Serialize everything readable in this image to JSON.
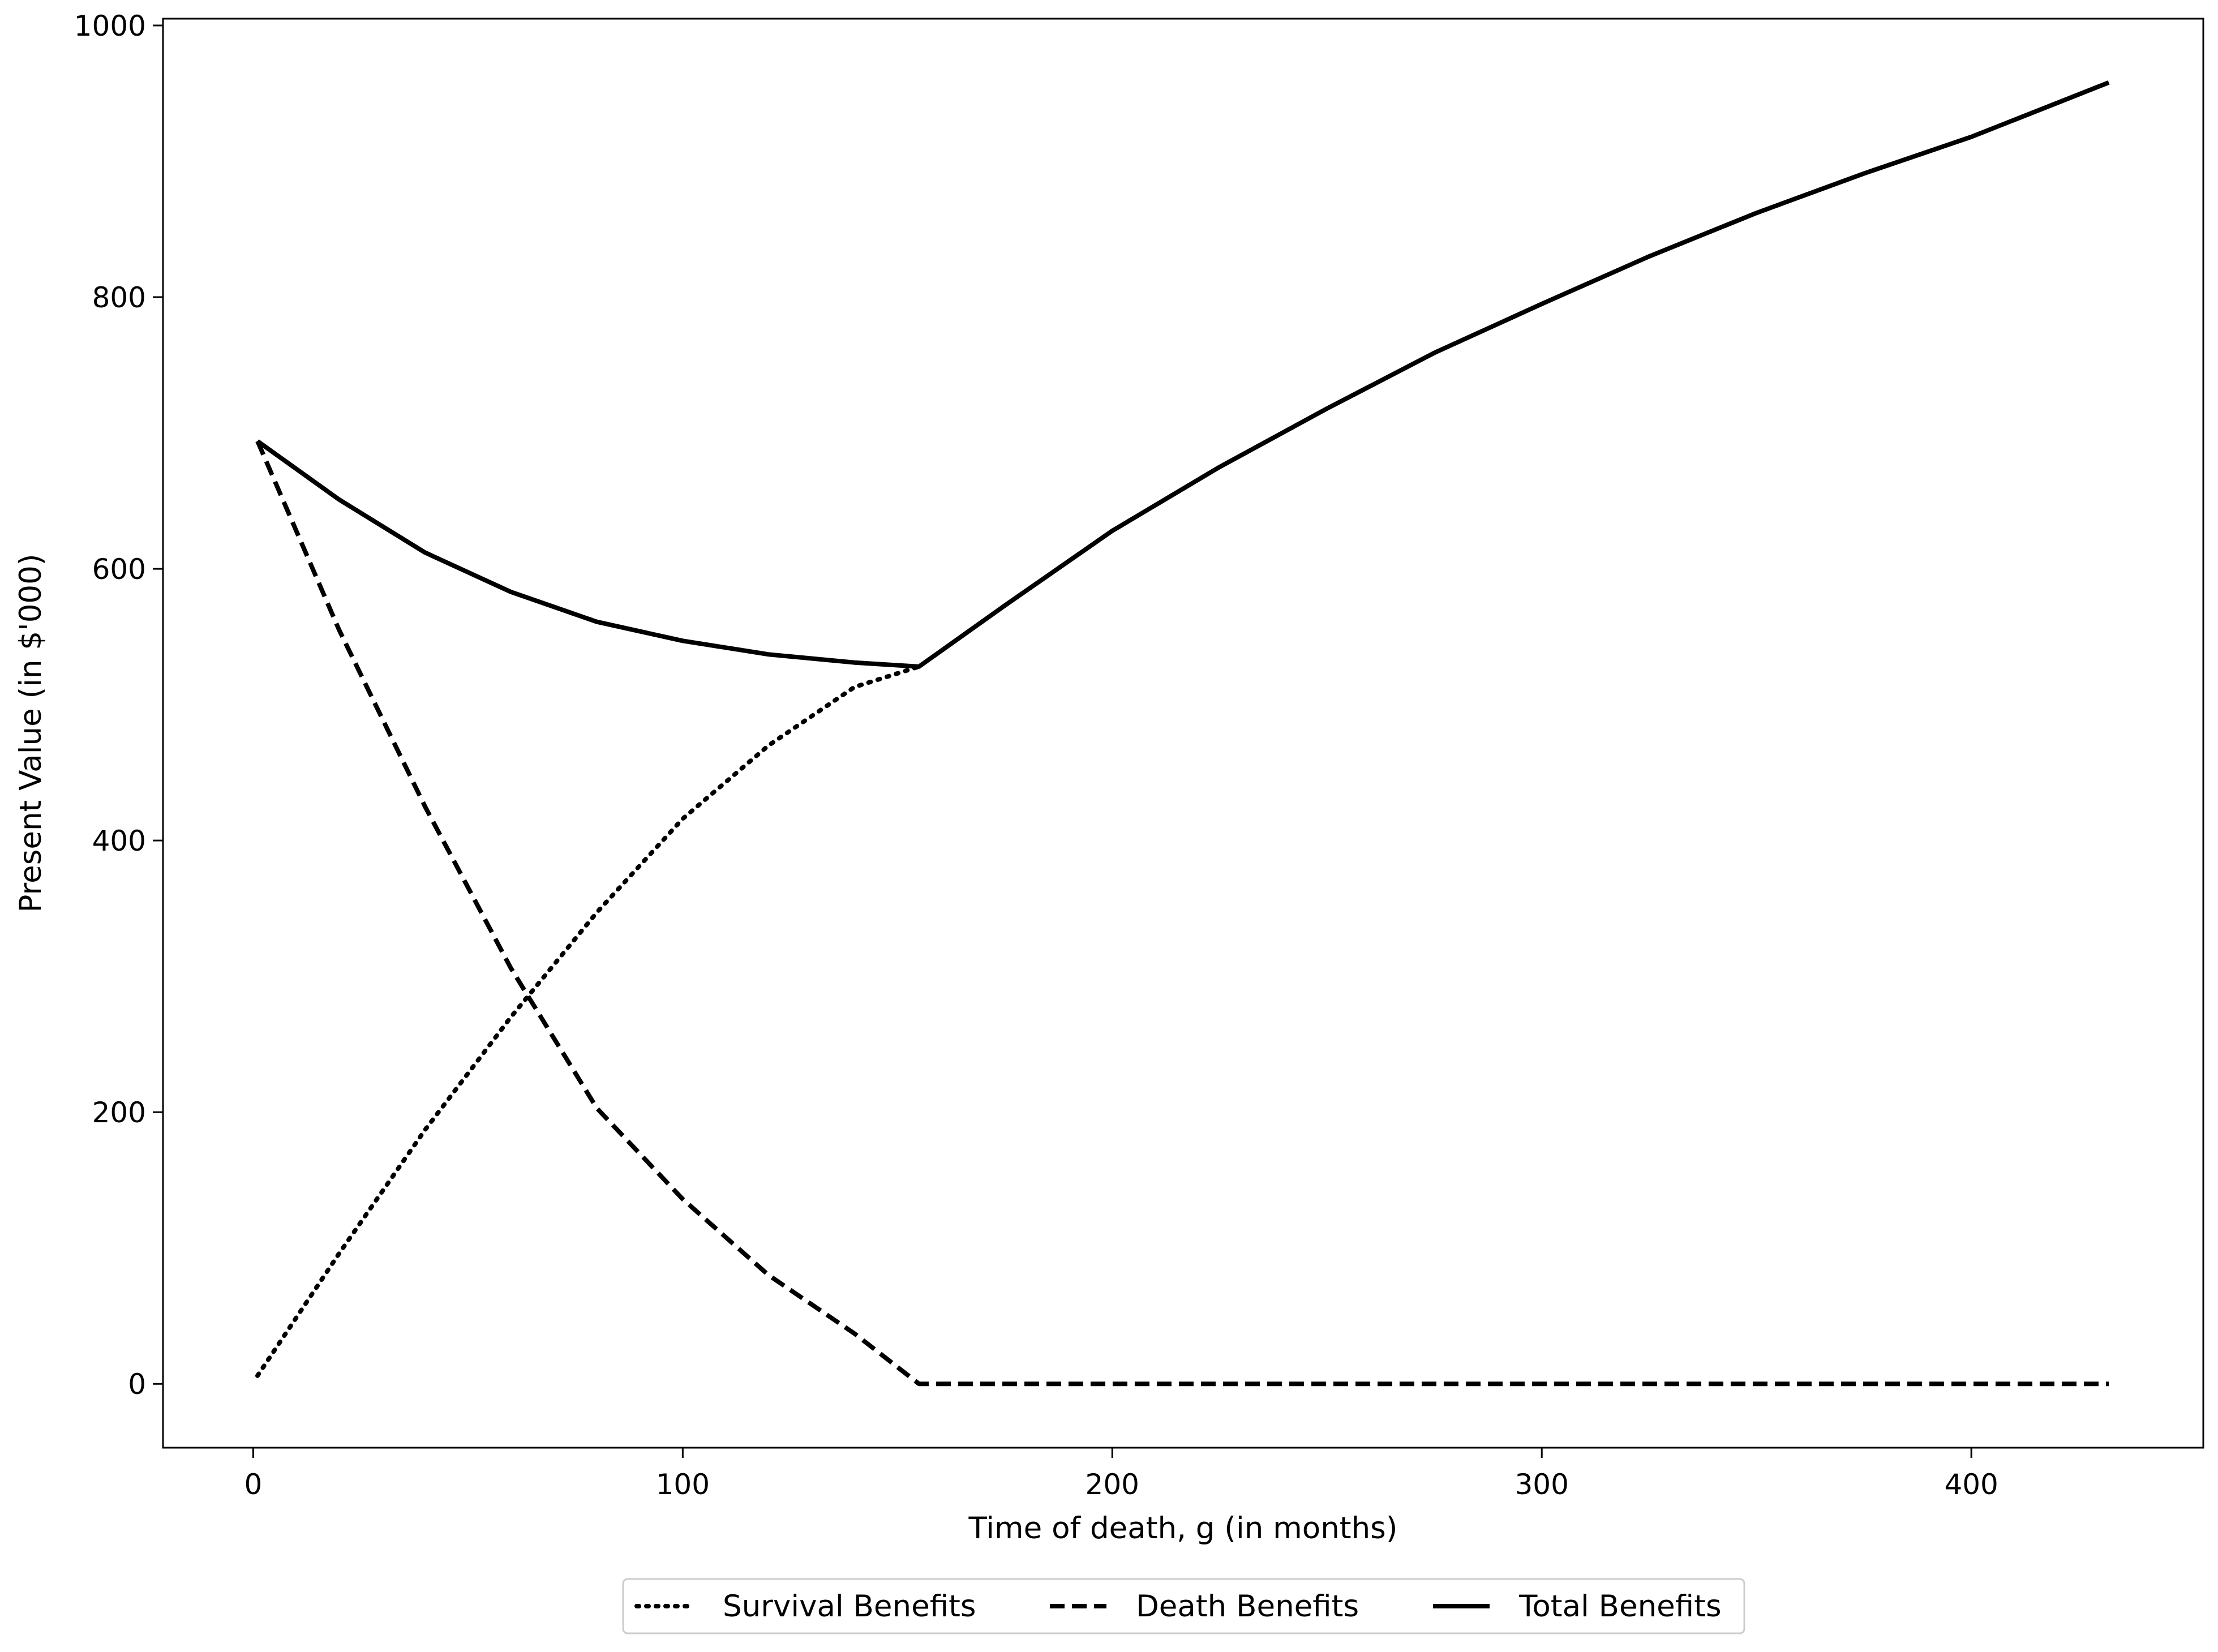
{
  "chart_data": {
    "type": "line",
    "xlabel": "Time of death, g (in months)",
    "ylabel": "Present Value (in $'000)",
    "xlim": [
      -21,
      454
    ],
    "ylim": [
      -47,
      1005
    ],
    "x_ticks": [
      0,
      100,
      200,
      300,
      400
    ],
    "y_ticks": [
      0,
      200,
      400,
      600,
      800,
      1000
    ],
    "grid": false,
    "legend_position": "bottom-center",
    "series": [
      {
        "name": "Survival Benefits",
        "line_style": "dotted",
        "color": "#000000",
        "x": [
          1,
          20,
          40,
          60,
          80,
          100,
          120,
          140,
          155
        ],
        "y": [
          6,
          96,
          187,
          270,
          347,
          416,
          470,
          513,
          528
        ]
      },
      {
        "name": "Death Benefits",
        "line_style": "dashed",
        "color": "#000000",
        "x": [
          1,
          20,
          40,
          60,
          80,
          100,
          120,
          140,
          155,
          200,
          300,
          432
        ],
        "y": [
          694,
          555,
          425,
          306,
          203,
          136,
          80,
          37,
          0,
          0,
          0,
          0
        ]
      },
      {
        "name": "Total Benefits",
        "line_style": "solid",
        "color": "#000000",
        "x": [
          1,
          20,
          40,
          60,
          80,
          100,
          120,
          140,
          155,
          175,
          200,
          225,
          250,
          275,
          300,
          325,
          350,
          375,
          400,
          432
        ],
        "y": [
          694,
          651,
          612,
          583,
          561,
          547,
          537,
          531,
          528,
          573,
          628,
          675,
          718,
          759,
          795,
          830,
          862,
          891,
          918,
          958
        ]
      }
    ]
  }
}
